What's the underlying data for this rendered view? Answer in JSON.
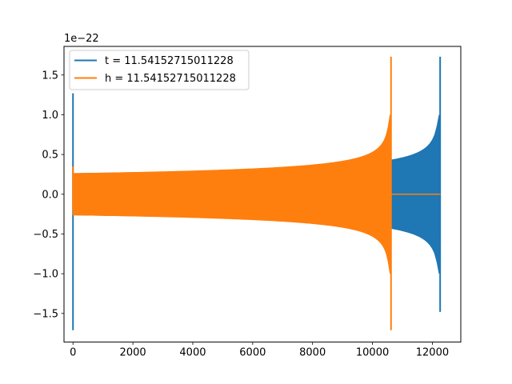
{
  "chart_data": {
    "type": "line",
    "title": "",
    "xlabel": "",
    "ylabel": "",
    "y_offset_label": "1e−22",
    "xlim": [
      -300,
      12950
    ],
    "ylim": [
      -1.86,
      1.86
    ],
    "xticks": [
      0,
      2000,
      4000,
      6000,
      8000,
      10000,
      12000
    ],
    "xtick_labels": [
      "0",
      "2000",
      "4000",
      "6000",
      "8000",
      "10000",
      "12000"
    ],
    "yticks": [
      -1.5,
      -1.0,
      -0.5,
      0.0,
      0.5,
      1.0,
      1.5
    ],
    "ytick_labels": [
      "−1.5",
      "−1.0",
      "−0.5",
      "0.0",
      "0.5",
      "1.0",
      "1.5"
    ],
    "grid": false,
    "legend_position": "top-left",
    "series": [
      {
        "name": "t = 11.54152715011228",
        "color": "#1f77b4",
        "x_start": 0,
        "x_end": 12270,
        "start_spike": {
          "max": 1.27,
          "min": -1.71
        },
        "amplitude_at_start": 0.26,
        "amplitude_near_merger": 0.41,
        "merger_peak": {
          "x": 12260,
          "max": 1.73,
          "min": -1.48
        },
        "tail": 0.0
      },
      {
        "name": "h = 11.54152715011228",
        "color": "#ff7f0e",
        "x_start": 0,
        "x_end": 12270,
        "start_spike": {
          "max": 0.35,
          "min": -0.2
        },
        "amplitude_at_start": 0.26,
        "amplitude_near_merger": 0.38,
        "merger_peak": {
          "x": 10620,
          "max": 1.73,
          "min": -1.71
        },
        "tail": 0.0
      }
    ]
  }
}
